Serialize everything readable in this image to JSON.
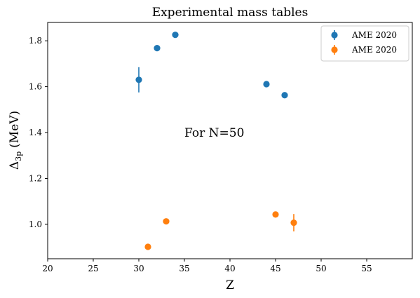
{
  "chart_data": {
    "type": "scatter",
    "title": "Experimental mass tables",
    "xlabel": "Z",
    "ylabel_main": "Δ",
    "ylabel_sub": "3p",
    "ylabel_unit": "(MeV)",
    "xlim": [
      20,
      60
    ],
    "ylim": [
      0.85,
      1.88
    ],
    "xticks": [
      20,
      25,
      30,
      35,
      40,
      45,
      50,
      55
    ],
    "yticks": [
      1.0,
      1.2,
      1.4,
      1.6,
      1.8
    ],
    "ytick_labels": [
      "1.0",
      "1.2",
      "1.4",
      "1.6",
      "1.8"
    ],
    "grid": false,
    "legend_position": "top-right",
    "annotation": {
      "text": "For N=50",
      "x": 35,
      "y": 1.4
    },
    "series": [
      {
        "name": "AME 2020",
        "color": "#1f77b4",
        "points": [
          {
            "x": 30,
            "y": 1.63,
            "yerr": 0.055
          },
          {
            "x": 32,
            "y": 1.768,
            "yerr": 0.004
          },
          {
            "x": 34,
            "y": 1.826,
            "yerr": 0.003
          },
          {
            "x": 44,
            "y": 1.611,
            "yerr": 0.004
          },
          {
            "x": 46,
            "y": 1.563,
            "yerr": 0.004
          }
        ]
      },
      {
        "name": "AME 2020",
        "color": "#ff7f0e",
        "points": [
          {
            "x": 31,
            "y": 0.902,
            "yerr": 0.004
          },
          {
            "x": 33,
            "y": 1.013,
            "yerr": 0.004
          },
          {
            "x": 45,
            "y": 1.043,
            "yerr": 0.004
          },
          {
            "x": 47,
            "y": 1.007,
            "yerr": 0.038
          }
        ]
      }
    ]
  }
}
